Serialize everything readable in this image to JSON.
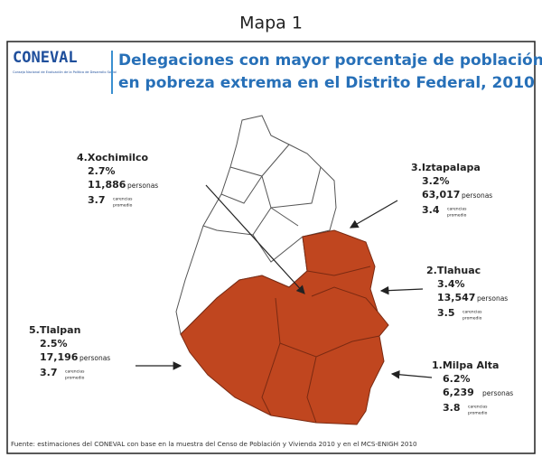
{
  "caption": "Mapa 1",
  "logo": {
    "name": "CONEVAL",
    "subtitle": "Consejo Nacional de Evaluación de la Política de Desarrollo Social"
  },
  "title_lines": [
    "Delegaciones con mayor porcentaje de población",
    "en pobreza extrema en el Distrito Federal, 2010"
  ],
  "callouts": [
    {
      "name": "4.Xochimilco",
      "percent": "2.7%",
      "persons": "11,886",
      "persons_unit": "personas",
      "carencias": "3.7",
      "carencias_unit": "carencias",
      "carencias_note": "promedio"
    },
    {
      "name": "3.Iztapalapa",
      "percent": "3.2%",
      "persons": "63,017",
      "persons_unit": "personas",
      "carencias": "3.4",
      "carencias_unit": "carencias",
      "carencias_note": "promedio"
    },
    {
      "name": "2.Tlahuac",
      "percent": "3.4%",
      "persons": "13,547",
      "persons_unit": "personas",
      "carencias": "3.5",
      "carencias_unit": "carencias",
      "carencias_note": "promedio"
    },
    {
      "name": "5.Tlalpan",
      "percent": "2.5%",
      "persons": "17,196",
      "persons_unit": "personas",
      "carencias": "3.7",
      "carencias_unit": "carencias",
      "carencias_note": "promedio"
    },
    {
      "name": "1.Milpa Alta",
      "percent": "6.2%",
      "persons": "6,239",
      "persons_unit": "personas",
      "carencias": "3.8",
      "carencias_unit": "carencias",
      "carencias_note": "promedio"
    }
  ],
  "source": "Fuente: estimaciones del CONEVAL con base en la muestra del Censo de Población y Vivienda 2010 y en el MCS-ENIGH 2010"
}
